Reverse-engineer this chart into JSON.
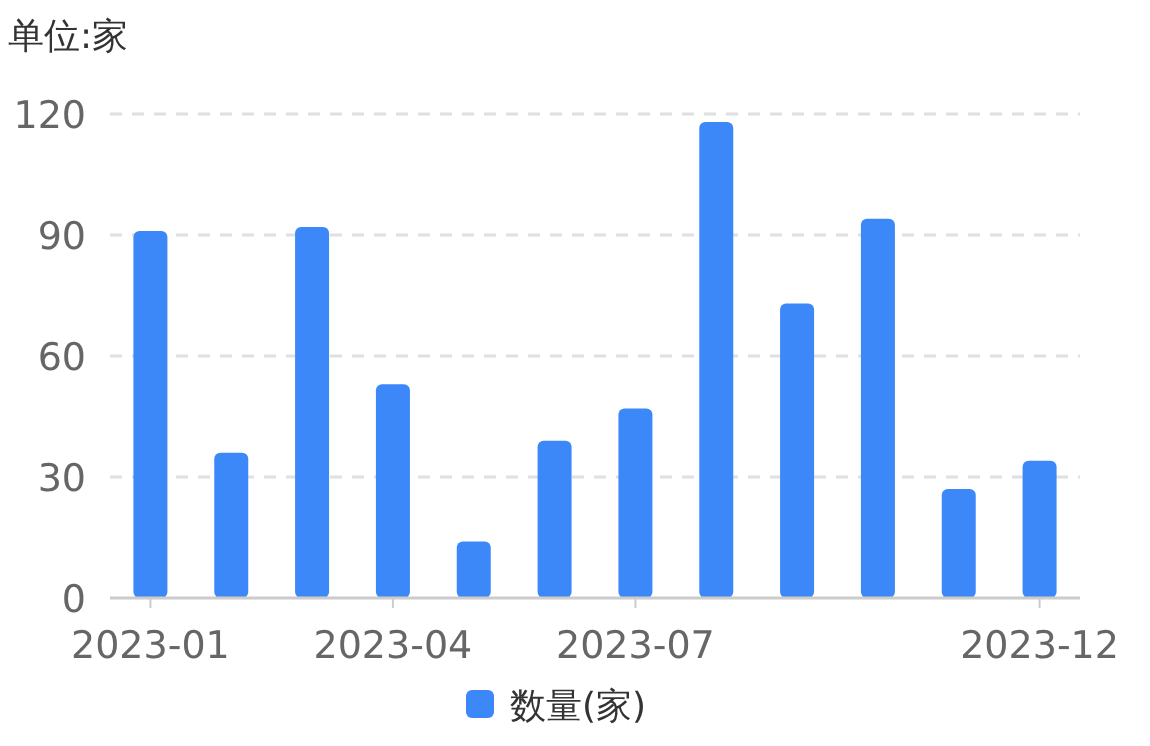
{
  "chart_data": {
    "type": "bar",
    "ylabel": "单位:家",
    "categories": [
      "2023-01",
      null,
      null,
      "2023-04",
      null,
      null,
      "2023-07",
      null,
      null,
      null,
      null,
      "2023-12"
    ],
    "series": [
      {
        "name": "数量(家)",
        "color": "#3d88f9",
        "values": [
          91,
          36,
          92,
          53,
          14,
          39,
          47,
          118,
          73,
          94,
          27,
          34
        ]
      }
    ],
    "ylim": [
      0,
      120
    ],
    "yticks": [
      0,
      30,
      60,
      90,
      120
    ],
    "grid": "y",
    "legend": "bottom"
  }
}
